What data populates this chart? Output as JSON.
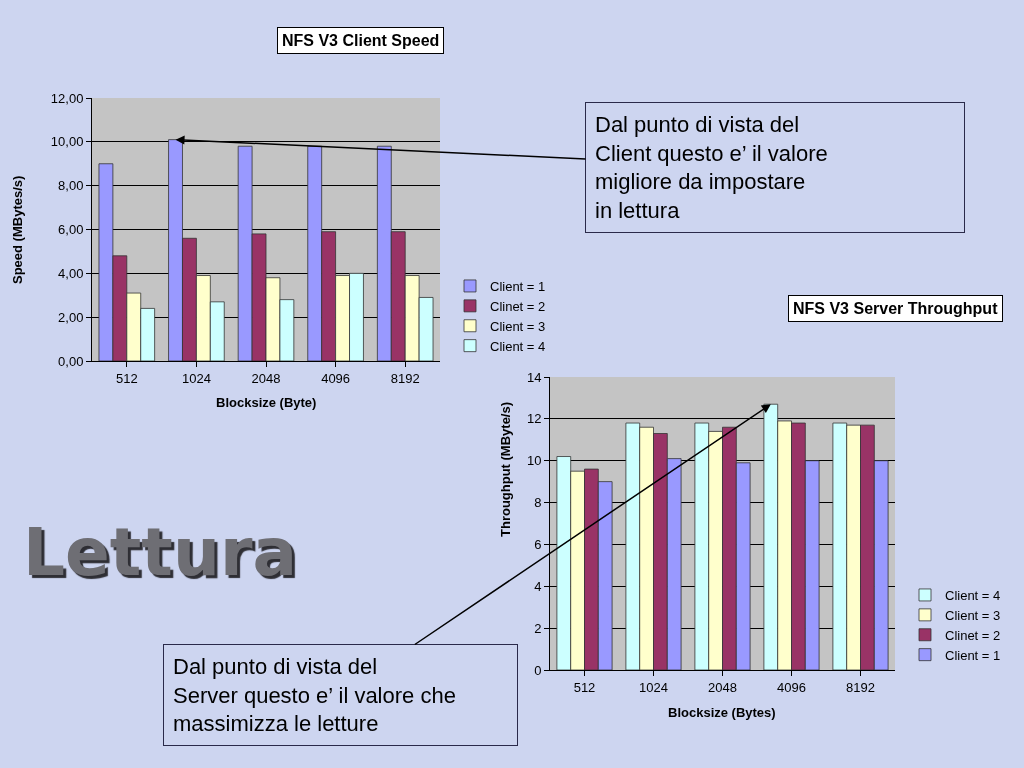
{
  "chart_data": [
    {
      "type": "bar",
      "title": "NFS V3 Client Speed",
      "xlabel": "Blocksize (Byte)",
      "ylabel": "Speed (MBytes/s)",
      "categories": [
        "512",
        "1024",
        "2048",
        "4096",
        "8192"
      ],
      "series": [
        {
          "name": "Client = 1",
          "color": "#9999ff",
          "values": [
            9.0,
            10.1,
            9.8,
            9.8,
            9.8
          ]
        },
        {
          "name": "Clinet = 2",
          "color": "#993366",
          "values": [
            4.8,
            5.6,
            5.8,
            5.9,
            5.9
          ]
        },
        {
          "name": "Client = 3",
          "color": "#ffffcc",
          "values": [
            3.1,
            3.9,
            3.8,
            3.9,
            3.9
          ]
        },
        {
          "name": "Client = 4",
          "color": "#ccffff",
          "values": [
            2.4,
            2.7,
            2.8,
            4.0,
            2.9
          ]
        }
      ],
      "ylim": [
        0,
        12
      ],
      "yticks": [
        {
          "value": 0,
          "label": "0,00"
        },
        {
          "value": 2,
          "label": "2,00"
        },
        {
          "value": 4,
          "label": "4,00"
        },
        {
          "value": 6,
          "label": "6,00"
        },
        {
          "value": 8,
          "label": "8,00"
        },
        {
          "value": 10,
          "label": "10,00"
        },
        {
          "value": 12,
          "label": "12,00"
        }
      ],
      "grid": "y",
      "legend": "bottom right",
      "annotations": [
        "Dal punto di vista del\nClient questo e’ il valore\nmigliore da impostare\nin lettura"
      ]
    },
    {
      "type": "bar",
      "title": "NFS V3 Server Throughput",
      "xlabel": "Blocksize (Bytes)",
      "ylabel": "Throughput (MByte/s)",
      "categories": [
        "512",
        "1024",
        "2048",
        "4096",
        "8192"
      ],
      "series": [
        {
          "name": "Client = 4",
          "color": "#ccffff",
          "values": [
            10.2,
            11.8,
            11.8,
            12.7,
            11.8
          ]
        },
        {
          "name": "Client = 3",
          "color": "#ffffcc",
          "values": [
            9.5,
            11.6,
            11.4,
            11.9,
            11.7
          ]
        },
        {
          "name": "Clinet = 2",
          "color": "#993366",
          "values": [
            9.6,
            11.3,
            11.6,
            11.8,
            11.7
          ]
        },
        {
          "name": "Client = 1",
          "color": "#9999ff",
          "values": [
            9.0,
            10.1,
            9.9,
            10.0,
            10.0
          ]
        }
      ],
      "ylim": [
        0,
        14
      ],
      "yticks": [
        0,
        2,
        4,
        6,
        8,
        10,
        12,
        14
      ],
      "grid": "y",
      "legend": "bottom right",
      "annotations": [
        "Dal punto di vista del\nServer questo e’ il valore che\nmassimizza le letture"
      ]
    },
    {
      "type": "other",
      "title": "Lettura"
    }
  ]
}
